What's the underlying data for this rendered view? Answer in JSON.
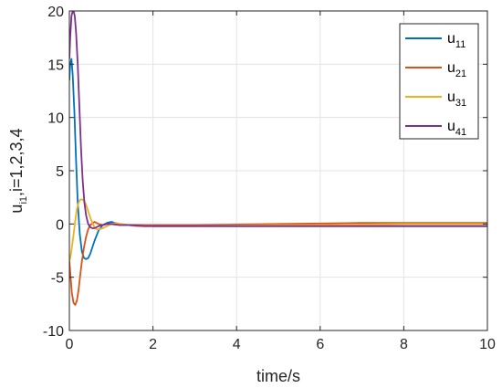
{
  "chart_data": {
    "type": "line",
    "xlabel": "time/s",
    "ylabel_main": "u",
    "ylabel_sub": "i1",
    "ylabel_rest": ",i=1,2,3,4",
    "xlim": [
      0,
      10
    ],
    "ylim": [
      -10,
      20
    ],
    "xticks": [
      "0",
      "2",
      "4",
      "6",
      "8",
      "10"
    ],
    "yticks": [
      "-10",
      "-5",
      "0",
      "5",
      "10",
      "15",
      "20"
    ],
    "grid": true,
    "legend_position": "top-right",
    "series": [
      {
        "name_main": "u",
        "name_sub": "11",
        "color": "#0072BD",
        "x": [
          0,
          0.02,
          0.05,
          0.08,
          0.12,
          0.16,
          0.2,
          0.25,
          0.3,
          0.35,
          0.4,
          0.45,
          0.5,
          0.6,
          0.7,
          0.8,
          0.9,
          1.0,
          1.1,
          1.2,
          1.4,
          1.6,
          1.8,
          2.0,
          3,
          4,
          5,
          6,
          7,
          8,
          9,
          10
        ],
        "y": [
          13.5,
          15.0,
          15.5,
          14.0,
          10.5,
          6.0,
          2.0,
          -1.0,
          -2.6,
          -3.2,
          -3.3,
          -3.2,
          -2.8,
          -1.6,
          -0.6,
          -0.1,
          0.1,
          0.2,
          0.1,
          0.0,
          -0.1,
          -0.1,
          -0.15,
          -0.2,
          -0.2,
          -0.2,
          -0.2,
          -0.2,
          -0.2,
          -0.2,
          -0.2,
          -0.2
        ]
      },
      {
        "name_main": "u",
        "name_sub": "21",
        "color": "#D95319",
        "x": [
          0,
          0.03,
          0.06,
          0.1,
          0.14,
          0.18,
          0.22,
          0.26,
          0.3,
          0.35,
          0.4,
          0.45,
          0.5,
          0.6,
          0.7,
          0.8,
          0.9,
          1.0,
          1.2,
          1.4,
          1.6,
          2.0,
          3,
          4,
          5,
          6,
          7,
          8,
          9,
          10
        ],
        "y": [
          -3.5,
          -5.0,
          -6.5,
          -7.4,
          -7.6,
          -7.2,
          -6.2,
          -4.8,
          -3.5,
          -2.2,
          -1.2,
          -0.5,
          -0.1,
          0.2,
          0.0,
          -0.1,
          0.0,
          0.0,
          -0.1,
          -0.1,
          -0.1,
          -0.1,
          -0.1,
          -0.05,
          0.0,
          0.05,
          0.1,
          0.1,
          0.1,
          0.1
        ]
      },
      {
        "name_main": "u",
        "name_sub": "31",
        "color": "#EDB120",
        "x": [
          0,
          0.03,
          0.06,
          0.1,
          0.14,
          0.18,
          0.22,
          0.26,
          0.3,
          0.35,
          0.4,
          0.45,
          0.5,
          0.55,
          0.6,
          0.65,
          0.7,
          0.8,
          0.9,
          1.0,
          1.1,
          1.2,
          1.4,
          1.6,
          2.0,
          3,
          4,
          5,
          6,
          7,
          8,
          9,
          10
        ],
        "y": [
          -3.5,
          -3.0,
          -2.2,
          -1.0,
          0.3,
          1.4,
          2.0,
          2.3,
          2.3,
          2.2,
          1.8,
          1.2,
          0.6,
          0.1,
          -0.3,
          -0.5,
          -0.5,
          -0.4,
          -0.2,
          0.0,
          0.1,
          0.0,
          -0.1,
          -0.2,
          -0.2,
          -0.2,
          -0.15,
          -0.1,
          -0.1,
          -0.05,
          0.0,
          0.0,
          0.0
        ]
      },
      {
        "name_main": "u",
        "name_sub": "41",
        "color": "#7E2F8E",
        "x": [
          0,
          0.02,
          0.05,
          0.08,
          0.1,
          0.13,
          0.16,
          0.2,
          0.24,
          0.28,
          0.32,
          0.36,
          0.4,
          0.45,
          0.5,
          0.55,
          0.6,
          0.7,
          0.8,
          0.9,
          1.0,
          1.2,
          1.4,
          1.6,
          1.8,
          2.0,
          3,
          4,
          5,
          6,
          7,
          8,
          9,
          10
        ],
        "y": [
          15.5,
          17.5,
          19.5,
          20.0,
          20.0,
          19.5,
          18.0,
          15.0,
          11.0,
          7.0,
          4.0,
          2.0,
          0.8,
          0.0,
          -0.3,
          -0.4,
          -0.4,
          -0.2,
          -0.1,
          0.0,
          0.0,
          -0.1,
          -0.1,
          -0.15,
          -0.2,
          -0.2,
          -0.2,
          -0.2,
          -0.2,
          -0.2,
          -0.2,
          -0.2,
          -0.2,
          -0.2
        ]
      }
    ]
  }
}
